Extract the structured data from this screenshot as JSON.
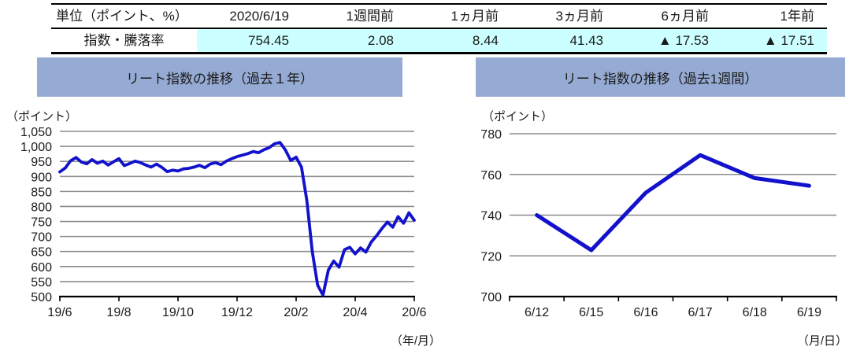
{
  "colors": {
    "banner": "#95ABD4",
    "highlight": "#CCFFFF",
    "line": "#1212CC",
    "grid": "#8C8C8C",
    "axis": "#000000",
    "text": "#1A1A1A",
    "table_border": "#000000"
  },
  "table": {
    "header": [
      "単位（ポイント、%）",
      "2020/6/19",
      "1週間前",
      "1ヵ月前",
      "3ヵ月前",
      "6ヵ月前",
      "1年前"
    ],
    "row_label": "指数・騰落率",
    "row_values": [
      "754.45",
      "2.08",
      "8.44",
      "41.43",
      "▲ 17.53",
      "▲ 17.51"
    ]
  },
  "chart_data": [
    {
      "type": "line",
      "title": "リート指数の推移（過去１年）",
      "y_unit": "（ポイント）",
      "x_unit": "（年/月）",
      "ylim": [
        500,
        1050
      ],
      "ytick_values": [
        1050,
        1000,
        950,
        900,
        850,
        800,
        750,
        700,
        650,
        600,
        550,
        500
      ],
      "ytick_labels": [
        "1,050",
        "1,000",
        "950",
        "900",
        "850",
        "800",
        "750",
        "700",
        "650",
        "600",
        "550",
        "500"
      ],
      "xticks": [
        "19/6",
        "19/8",
        "19/10",
        "19/12",
        "20/2",
        "20/4",
        "20/6"
      ],
      "grid": true,
      "legend": "none",
      "values": [
        915,
        928,
        952,
        963,
        948,
        942,
        956,
        944,
        951,
        938,
        949,
        959,
        936,
        943,
        951,
        946,
        938,
        931,
        941,
        930,
        916,
        921,
        918,
        925,
        927,
        931,
        937,
        929,
        941,
        946,
        939,
        951,
        959,
        966,
        971,
        976,
        983,
        979,
        989,
        996,
        1009,
        1013,
        988,
        953,
        964,
        931,
        820,
        650,
        538,
        505,
        588,
        618,
        598,
        656,
        664,
        642,
        662,
        648,
        682,
        703,
        727,
        748,
        731,
        766,
        744,
        779,
        754
      ]
    },
    {
      "type": "line",
      "title": "リート指数の推移（過去1週間）",
      "y_unit": "（ポイント）",
      "x_unit": "（月/日）",
      "ylim": [
        700,
        780
      ],
      "ytick_values": [
        780,
        760,
        740,
        720,
        700
      ],
      "ytick_labels": [
        "780",
        "760",
        "740",
        "720",
        "700"
      ],
      "xticks": [
        "6/12",
        "6/15",
        "6/16",
        "6/17",
        "6/18",
        "6/19"
      ],
      "grid": true,
      "legend": "none",
      "values": [
        740,
        722.8,
        751,
        769.5,
        758.2,
        754.45
      ]
    }
  ]
}
